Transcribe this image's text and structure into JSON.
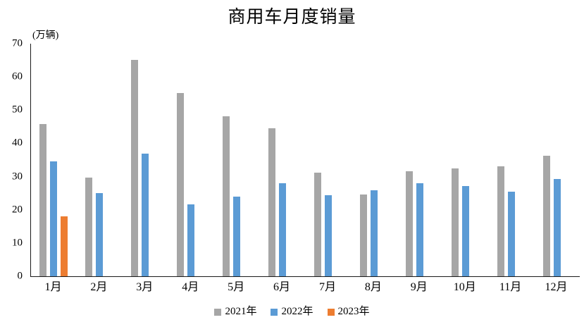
{
  "chart_data": {
    "type": "bar",
    "title": "商用车月度销量",
    "unit_label": "(万辆)",
    "categories": [
      "1月",
      "2月",
      "3月",
      "4月",
      "5月",
      "6月",
      "7月",
      "8月",
      "9月",
      "10月",
      "11月",
      "12月"
    ],
    "series": [
      {
        "name": "2021年",
        "color": "#a6a6a6",
        "values": [
          45.9,
          29.7,
          65.2,
          55.2,
          48.2,
          44.6,
          31.2,
          24.7,
          31.6,
          32.5,
          33.0,
          36.3
        ]
      },
      {
        "name": "2022年",
        "color": "#5b9bd5",
        "values": [
          34.5,
          25.0,
          37.0,
          21.6,
          23.9,
          28.1,
          24.5,
          25.9,
          28.0,
          27.2,
          25.4,
          29.2
        ]
      },
      {
        "name": "2023年",
        "color": "#ed7d31",
        "values": [
          18.0,
          null,
          null,
          null,
          null,
          null,
          null,
          null,
          null,
          null,
          null,
          null
        ]
      }
    ],
    "ylim": [
      0,
      70
    ],
    "yticks": [
      0,
      10,
      20,
      30,
      40,
      50,
      60,
      70
    ],
    "grid": false,
    "legend_position": "bottom",
    "axis_color": "#1a1a1a",
    "background_color": "#ffffff"
  }
}
